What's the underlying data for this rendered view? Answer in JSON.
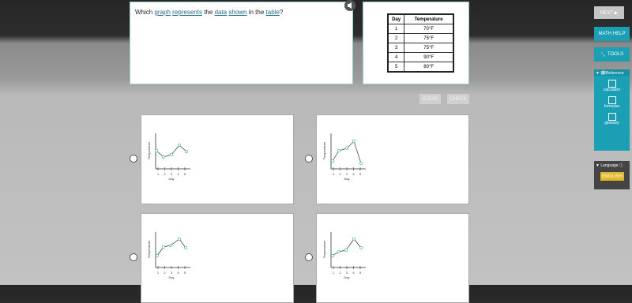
{
  "question": {
    "parts": [
      "Which",
      "graph",
      "represents",
      "the",
      "data",
      "shown",
      "in the",
      "table",
      "?"
    ]
  },
  "table": {
    "header": [
      "Day",
      "Temperature"
    ],
    "rows": [
      [
        "1",
        "70°F"
      ],
      [
        "2",
        "75°F"
      ],
      [
        "3",
        "75°F"
      ],
      [
        "4",
        "90°F"
      ],
      [
        "5",
        "80°F"
      ]
    ]
  },
  "buttons": {
    "clear": "CLEAR",
    "check": "CHECK"
  },
  "options": [
    {
      "y_label": "Temperature",
      "x_label": "Day",
      "x_ticks": [
        "1",
        "2",
        "3",
        "4",
        "5"
      ]
    },
    {
      "y_label": "Temperature",
      "x_label": "Day",
      "x_ticks": [
        "1",
        "2",
        "3",
        "4",
        "5"
      ]
    },
    {
      "y_label": "Temperature",
      "x_label": "Day",
      "x_ticks": [
        "1",
        "2",
        "3",
        "4",
        "5"
      ]
    },
    {
      "y_label": "Temperature",
      "x_label": "Day",
      "x_ticks": [
        "1",
        "2",
        "3",
        "4",
        "5"
      ]
    }
  ],
  "sidebar": {
    "next": "NEXT ▶",
    "math_help": "MATH HELP",
    "tools": "TOOLS",
    "reference": "Reference",
    "reference_items": [
      "calculator",
      "formulas",
      "glossary"
    ],
    "language": "Language",
    "english": "ENGLISH"
  }
}
